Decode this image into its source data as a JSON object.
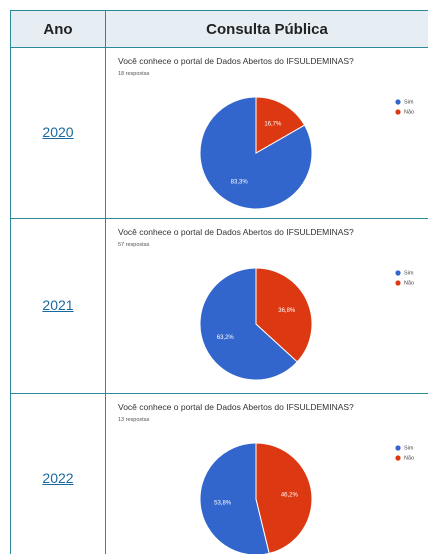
{
  "table": {
    "header": [
      "Ano",
      "Consulta Pública"
    ],
    "rows": [
      {
        "year": "2020",
        "chart": {
          "type": "pie",
          "title": "Você conhece o portal de Dados Abertos do IFSULDEMINAS?",
          "subtitle": "18 respostas",
          "categories": [
            "Sim",
            "Não"
          ],
          "values": [
            83.3,
            16.7
          ],
          "value_labels": [
            "83,3%",
            "16,7%"
          ],
          "colors": [
            "#3366cc",
            "#dc3912"
          ]
        }
      },
      {
        "year": "2021",
        "chart": {
          "type": "pie",
          "title": "Você conhece o portal de Dados Abertos do IFSULDEMINAS?",
          "subtitle": "57 respostas",
          "categories": [
            "Sim",
            "Não"
          ],
          "values": [
            63.2,
            36.8
          ],
          "value_labels": [
            "63,2%",
            "36,8%"
          ],
          "colors": [
            "#3366cc",
            "#dc3912"
          ]
        }
      },
      {
        "year": "2022",
        "chart": {
          "type": "pie",
          "title": "Você conhece o portal de Dados Abertos do IFSULDEMINAS?",
          "subtitle": "13 respostas",
          "categories": [
            "Sim",
            "Não"
          ],
          "values": [
            53.8,
            46.2
          ],
          "value_labels": [
            "53,8%",
            "46,2%"
          ],
          "colors": [
            "#3366cc",
            "#dc3912"
          ]
        }
      }
    ]
  }
}
